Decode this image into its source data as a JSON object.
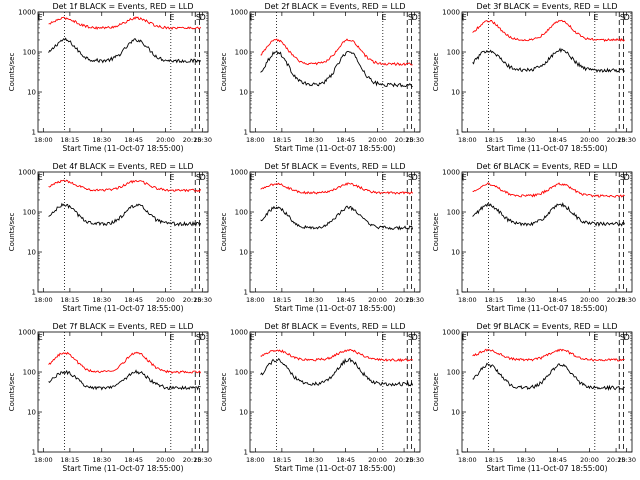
{
  "panels": [
    {
      "title": "Det 1f BLACK = Events, RED = LLD",
      "letters": [
        "E",
        "E",
        "S",
        "D"
      ]
    },
    {
      "title": "Det 2f BLACK = Events, RED = LLD",
      "letters": [
        "E",
        "E",
        "S",
        "D"
      ]
    },
    {
      "title": "Det 3f BLACK = Events, RED = LLD",
      "letters": [
        "E",
        "E",
        "S",
        "D"
      ]
    },
    {
      "title": "Det 4f BLACK = Events, RED = LLD",
      "letters": [
        "E",
        "E",
        "S",
        "D"
      ]
    },
    {
      "title": "Det 5f BLACK = Events, RED = LLD",
      "letters": [
        "E",
        "E",
        "S",
        "D"
      ]
    },
    {
      "title": "Det 6f BLACK = Events, RED = LLD",
      "letters": [
        "E",
        "E",
        "S",
        "D"
      ]
    },
    {
      "title": "Det 7f BLACK = Events, RED = LLD",
      "letters": [
        "E",
        "E",
        "S",
        "D"
      ]
    },
    {
      "title": "Det 8f BLACK = Events, RED = LLD",
      "letters": [
        "E",
        "E",
        "S",
        "D"
      ]
    },
    {
      "title": "Det 9f BLACK = Events, RED = LLD",
      "letters": [
        "E",
        "E",
        "S",
        "D"
      ]
    }
  ],
  "xlabel": "Start Time (11-Oct-07 18:55:00)",
  "ylabel": "Counts/sec",
  "colors": {
    "events": "#000000",
    "lld": "#ff0000",
    "axes": "#000000"
  },
  "chart_data": {
    "type": "line",
    "panels": 9,
    "yscale": "log",
    "ylim": [
      1,
      1000
    ],
    "ytick_labels": [
      "1",
      "10",
      "100",
      "1000"
    ],
    "xlim_minutes_after_18_00": [
      -5,
      155
    ],
    "xtick_labels": [
      "18:00",
      "18:15",
      "18:30",
      "18:45",
      "20:00",
      "20:15",
      "20:30"
    ],
    "xtick_minutes": [
      0,
      25,
      55,
      85,
      115,
      140,
      150
    ],
    "dotted_lines_minutes": [
      20,
      120
    ],
    "dashed_lines_minutes": [
      143,
      147
    ],
    "series": [
      {
        "name": "Events (BLACK)",
        "peak_minutes": [
          20,
          88
        ],
        "levels": [
          {
            "det": "1f",
            "min": 60,
            "max": 200
          },
          {
            "det": "2f",
            "min": 15,
            "max": 100
          },
          {
            "det": "3f",
            "min": 35,
            "max": 110
          },
          {
            "det": "4f",
            "min": 50,
            "max": 150
          },
          {
            "det": "5f",
            "min": 40,
            "max": 130
          },
          {
            "det": "6f",
            "min": 50,
            "max": 150
          },
          {
            "det": "7f",
            "min": 40,
            "max": 100
          },
          {
            "det": "8f",
            "min": 50,
            "max": 200
          },
          {
            "det": "9f",
            "min": 40,
            "max": 150
          }
        ]
      },
      {
        "name": "LLD (RED)",
        "peak_minutes": [
          20,
          88
        ],
        "levels": [
          {
            "det": "1f",
            "min": 400,
            "max": 700
          },
          {
            "det": "2f",
            "min": 50,
            "max": 200
          },
          {
            "det": "3f",
            "min": 200,
            "max": 600
          },
          {
            "det": "4f",
            "min": 350,
            "max": 600
          },
          {
            "det": "5f",
            "min": 300,
            "max": 500
          },
          {
            "det": "6f",
            "min": 250,
            "max": 500
          },
          {
            "det": "7f",
            "min": 100,
            "max": 300
          },
          {
            "det": "8f",
            "min": 200,
            "max": 350
          },
          {
            "det": "9f",
            "min": 200,
            "max": 350
          }
        ]
      }
    ]
  }
}
